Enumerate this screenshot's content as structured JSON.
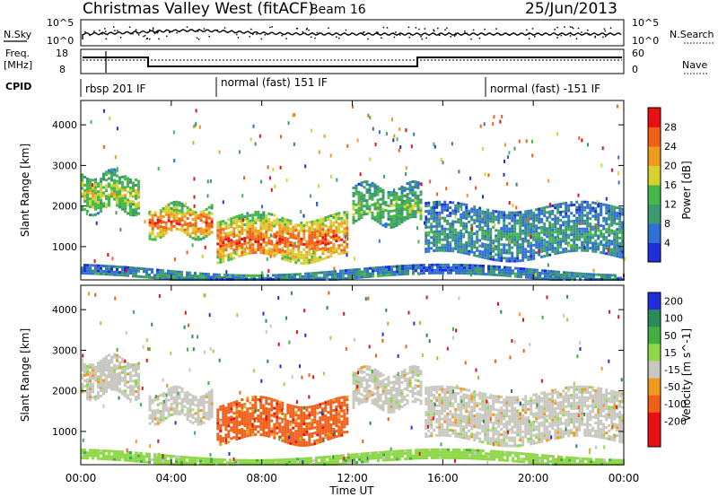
{
  "header": {
    "title": "Christmas Valley West (fitACF)",
    "beam": "Beam 16",
    "date": "25/Jun/2013"
  },
  "noise_panel": {
    "left_label": "N.Sky",
    "left_ticks": [
      "10^5",
      "10^0"
    ],
    "right_ticks": [
      "10^5",
      "10^0"
    ],
    "right_label": "N.Search"
  },
  "freq_panel": {
    "left_label_1": "Freq.",
    "left_label_2": "[MHz]",
    "left_ticks": [
      "18",
      "8"
    ],
    "right_ticks": [
      "60",
      "0"
    ],
    "right_label": "Nave"
  },
  "cpid": {
    "label": "CPID",
    "modes": [
      "rbsp 201 IF",
      "normal (fast) 151 IF",
      "normal (fast) -151 IF"
    ]
  },
  "chart_data": [
    {
      "type": "heatmap",
      "title": "",
      "ylabel": "Slant Range [km]",
      "ylim": [
        180,
        4600
      ],
      "yticks": [
        "1000",
        "2000",
        "3000",
        "4000"
      ],
      "xlabel": "Time UT",
      "xlim": [
        "00:00",
        "24:00"
      ],
      "xticks": [
        "00:00",
        "04:00",
        "08:00",
        "12:00",
        "16:00",
        "20:00",
        "00:00"
      ],
      "colorbar": {
        "label": "Power [dB]",
        "ticks": [
          "4",
          "8",
          "12",
          "16",
          "20",
          "24",
          "28"
        ],
        "colors": [
          "#1e2ed8",
          "#2f6fd6",
          "#3c9a6e",
          "#44b84a",
          "#d8d030",
          "#f09a20",
          "#f26018",
          "#e81010"
        ]
      },
      "echo_bands": [
        {
          "t_start": 0.0,
          "t_end": 2.6,
          "range_top": 2800,
          "range_bottom": 1900,
          "power_db": 18
        },
        {
          "t_start": 3.0,
          "t_end": 5.8,
          "range_top": 2000,
          "range_bottom": 1300,
          "power_db": 26
        },
        {
          "t_start": 6.0,
          "t_end": 11.8,
          "range_top": 1750,
          "range_bottom": 700,
          "power_db": 27
        },
        {
          "t_start": 12.0,
          "t_end": 15.0,
          "range_top": 2500,
          "range_bottom": 1600,
          "power_db": 12
        },
        {
          "t_start": 15.2,
          "t_end": 24.0,
          "range_top": 2000,
          "range_bottom": 800,
          "power_db": 10
        },
        {
          "t_start": 0.0,
          "t_end": 24.0,
          "range_top": 450,
          "range_bottom": 200,
          "power_db": 8
        }
      ]
    },
    {
      "type": "heatmap",
      "title": "",
      "ylabel": "Slant Range [km]",
      "ylim": [
        180,
        4600
      ],
      "yticks": [
        "1000",
        "2000",
        "3000",
        "4000"
      ],
      "xlabel": "Time UT",
      "xlim": [
        "00:00",
        "24:00"
      ],
      "xticks": [
        "00:00",
        "04:00",
        "08:00",
        "12:00",
        "16:00",
        "20:00",
        "00:00"
      ],
      "colorbar": {
        "label": "Velocity [m s^-1]",
        "ticks": [
          "200",
          "100",
          "50",
          "15",
          "-15",
          "-50",
          "-100",
          "-200"
        ],
        "colors": [
          "#1e2ed8",
          "#2a8a5a",
          "#40b040",
          "#8ed84a",
          "#c8c8c0",
          "#f09a20",
          "#f26018",
          "#e81010",
          "#e81010"
        ]
      },
      "echo_bands": [
        {
          "t_start": 0.0,
          "t_end": 2.6,
          "range_top": 2800,
          "range_bottom": 1900,
          "velocity_ms": 0
        },
        {
          "t_start": 3.0,
          "t_end": 5.8,
          "range_top": 2000,
          "range_bottom": 1300,
          "velocity_ms": 0
        },
        {
          "t_start": 6.0,
          "t_end": 11.8,
          "range_top": 1750,
          "range_bottom": 800,
          "velocity_ms": -80
        },
        {
          "t_start": 12.0,
          "t_end": 15.0,
          "range_top": 2500,
          "range_bottom": 1600,
          "velocity_ms": 0
        },
        {
          "t_start": 15.2,
          "t_end": 24.0,
          "range_top": 2000,
          "range_bottom": 800,
          "velocity_ms": 0
        },
        {
          "t_start": 0.0,
          "t_end": 24.0,
          "range_top": 450,
          "range_bottom": 200,
          "velocity_ms": 30
        }
      ]
    }
  ]
}
